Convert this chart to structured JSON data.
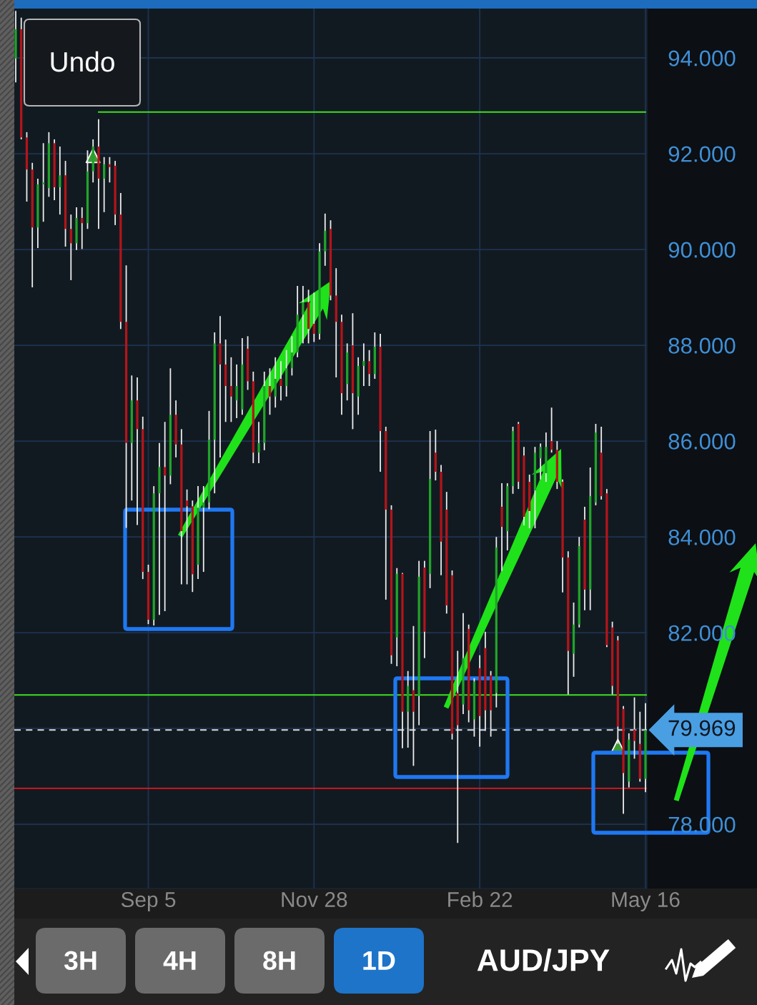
{
  "chart_data": {
    "type": "candlestick",
    "title": "AUD/JPY",
    "categories": [
      null,
      null,
      null,
      null,
      null,
      null,
      null,
      null,
      null,
      null,
      null,
      null,
      null,
      null,
      null,
      null,
      null,
      null,
      null,
      null,
      null,
      null,
      null,
      null,
      "Sep 5",
      null,
      null,
      null,
      null,
      null,
      null,
      null,
      null,
      null,
      null,
      null,
      null,
      null,
      null,
      null,
      null,
      null,
      null,
      null,
      null,
      null,
      null,
      null,
      null,
      null,
      null,
      null,
      null,
      null,
      "Nov 28",
      null,
      null,
      null,
      null,
      null,
      null,
      null,
      null,
      null,
      null,
      null,
      null,
      null,
      null,
      null,
      null,
      null,
      null,
      null,
      null,
      null,
      null,
      null,
      null,
      null,
      null,
      null,
      null,
      null,
      "Feb 22",
      null,
      null,
      null,
      null,
      null,
      null,
      null,
      null,
      null,
      null,
      null,
      null,
      null,
      null,
      null,
      null,
      null,
      null,
      null,
      null,
      null,
      null,
      null,
      null,
      null,
      null,
      null,
      null,
      null,
      "May 16"
    ],
    "ohlc": [
      [
        93.99,
        94.98,
        93.49,
        94.6
      ],
      [
        94.6,
        94.84,
        92.3,
        92.34
      ],
      [
        92.34,
        92.45,
        91.0,
        91.67
      ],
      [
        91.67,
        91.81,
        89.21,
        90.46
      ],
      [
        90.46,
        91.48,
        90.03,
        91.36
      ],
      [
        91.36,
        92.22,
        90.58,
        91.4
      ],
      [
        91.28,
        92.45,
        91.1,
        92.22
      ],
      [
        92.22,
        92.3,
        91.03,
        91.3
      ],
      [
        91.3,
        92.15,
        90.73,
        91.55
      ],
      [
        91.55,
        91.85,
        90.06,
        90.43
      ],
      [
        90.43,
        90.73,
        89.36,
        90.13
      ],
      [
        90.13,
        90.88,
        89.99,
        90.66
      ],
      [
        90.66,
        90.88,
        90.01,
        90.55
      ],
      [
        90.55,
        92.07,
        90.43,
        91.63
      ],
      [
        91.63,
        92.3,
        91.4,
        92.15
      ],
      [
        92.15,
        92.72,
        90.43,
        91.48
      ],
      [
        91.48,
        91.93,
        90.78,
        91.78
      ],
      [
        91.78,
        91.93,
        91.4,
        91.72
      ],
      [
        91.75,
        91.85,
        90.51,
        90.73
      ],
      [
        90.73,
        91.18,
        88.34,
        88.49
      ],
      [
        88.49,
        89.67,
        84.19,
        85.96
      ],
      [
        85.96,
        87.37,
        84.76,
        86.85
      ],
      [
        86.85,
        87.33,
        84.25,
        86.25
      ],
      [
        86.25,
        86.51,
        83.12,
        83.27
      ],
      [
        83.27,
        83.42,
        82.18,
        82.27
      ],
      [
        82.27,
        85.06,
        82.15,
        84.91
      ],
      [
        84.91,
        85.96,
        82.37,
        85.46
      ],
      [
        85.46,
        86.4,
        82.45,
        85.28
      ],
      [
        85.28,
        87.52,
        85.1,
        86.55
      ],
      [
        86.55,
        86.85,
        85.66,
        85.93
      ],
      [
        85.93,
        86.25,
        83.01,
        84.12
      ],
      [
        84.76,
        84.99,
        83.01,
        84.64
      ],
      [
        84.64,
        84.76,
        82.85,
        83.22
      ],
      [
        83.42,
        85.06,
        83.12,
        84.61
      ],
      [
        84.61,
        85.06,
        83.27,
        84.72
      ],
      [
        84.72,
        86.63,
        84.58,
        86.03
      ],
      [
        86.03,
        88.27,
        84.91,
        88.04
      ],
      [
        88.04,
        88.61,
        85.66,
        87.6
      ],
      [
        87.6,
        88.12,
        86.4,
        87.15
      ],
      [
        87.15,
        87.75,
        86.4,
        86.93
      ],
      [
        86.85,
        87.6,
        86.48,
        87.15
      ],
      [
        86.66,
        88.15,
        86.55,
        87.6
      ],
      [
        87.93,
        88.19,
        87.07,
        87.25
      ],
      [
        87.25,
        87.45,
        85.54,
        85.76
      ],
      [
        85.76,
        86.4,
        85.54,
        85.96
      ],
      [
        85.96,
        87.45,
        85.81,
        87.15
      ],
      [
        87.15,
        87.52,
        86.55,
        86.93
      ],
      [
        86.93,
        87.75,
        86.7,
        87.3
      ],
      [
        87.3,
        87.67,
        86.85,
        87.15
      ],
      [
        87.15,
        87.9,
        86.93,
        87.52
      ],
      [
        87.52,
        88.19,
        87.37,
        87.85
      ],
      [
        87.85,
        89.24,
        87.75,
        88.64
      ],
      [
        88.64,
        89.24,
        88.04,
        88.9
      ],
      [
        88.9,
        89.16,
        88.04,
        88.34
      ],
      [
        88.45,
        89.1,
        88.07,
        88.24
      ],
      [
        88.24,
        90.13,
        88.12,
        89.96
      ],
      [
        89.96,
        90.75,
        89.66,
        90.39
      ],
      [
        90.43,
        90.61,
        88.94,
        89.04
      ],
      [
        89.04,
        89.61,
        87.33,
        88.49
      ],
      [
        88.49,
        88.64,
        86.55,
        87.0
      ],
      [
        87.19,
        88.04,
        86.85,
        87.85
      ],
      [
        88.0,
        88.67,
        86.25,
        87.0
      ],
      [
        86.93,
        87.75,
        86.55,
        87.57
      ],
      [
        87.57,
        88.04,
        87.15,
        87.67
      ],
      [
        87.67,
        87.9,
        87.15,
        87.4
      ],
      [
        87.4,
        88.27,
        87.3,
        87.97
      ],
      [
        87.97,
        88.24,
        85.36,
        86.21
      ],
      [
        86.21,
        86.3,
        82.69,
        84.57
      ],
      [
        84.57,
        84.66,
        81.35,
        81.53
      ],
      [
        81.9,
        83.35,
        81.3,
        83.23
      ],
      [
        83.23,
        83.25,
        79.59,
        80.35
      ],
      [
        80.35,
        81.2,
        79.6,
        80.89
      ],
      [
        80.8,
        82.14,
        79.22,
        80.35
      ],
      [
        80.68,
        83.5,
        80.07,
        83.17
      ],
      [
        83.36,
        83.5,
        81.47,
        82.02
      ],
      [
        83.23,
        86.21,
        82.93,
        85.21
      ],
      [
        85.76,
        86.24,
        85.18,
        85.36
      ],
      [
        85.36,
        85.5,
        83.2,
        83.9
      ],
      [
        84.57,
        84.94,
        82.4,
        82.57
      ],
      [
        83.2,
        83.3,
        79.77,
        79.89
      ],
      [
        80.74,
        81.62,
        77.61,
        80.07
      ],
      [
        80.5,
        82.41,
        80.3,
        81.47
      ],
      [
        82.08,
        82.17,
        80.13,
        80.38
      ],
      [
        80.19,
        81.05,
        79.83,
        80.98
      ],
      [
        81.26,
        81.53,
        79.62,
        80.26
      ],
      [
        81.68,
        82.02,
        79.95,
        80.38
      ],
      [
        81.11,
        81.2,
        79.83,
        80.38
      ],
      [
        80.74,
        84.0,
        80.44,
        83.78
      ],
      [
        84.63,
        85.12,
        83.29,
        84.21
      ],
      [
        84.12,
        85.12,
        83.72,
        85.06
      ],
      [
        85.06,
        86.3,
        84.9,
        86.21
      ],
      [
        86.36,
        86.4,
        85.0,
        85.15
      ],
      [
        85.7,
        85.88,
        84.24,
        84.42
      ],
      [
        85.15,
        85.3,
        84.18,
        84.54
      ],
      [
        84.97,
        85.88,
        84.18,
        85.76
      ],
      [
        85.64,
        85.95,
        85.2,
        85.88
      ],
      [
        85.33,
        86.18,
        85.15,
        85.88
      ],
      [
        86.0,
        86.7,
        85.76,
        85.82
      ],
      [
        85.82,
        86.0,
        85.0,
        85.15
      ],
      [
        85.15,
        85.2,
        82.84,
        83.57
      ],
      [
        83.57,
        83.7,
        80.71,
        81.62
      ],
      [
        81.56,
        82.63,
        81.08,
        82.17
      ],
      [
        82.17,
        84.0,
        82.11,
        83.81
      ],
      [
        84.36,
        84.63,
        82.47,
        82.9
      ],
      [
        82.9,
        85.45,
        82.47,
        84.85
      ],
      [
        84.72,
        86.36,
        84.66,
        86.18
      ],
      [
        85.76,
        86.3,
        84.78,
        84.85
      ],
      [
        84.91,
        85.0,
        81.7,
        81.74
      ],
      [
        82.11,
        82.23,
        80.71,
        80.89
      ],
      [
        81.84,
        81.93,
        79.68,
        80.04
      ],
      [
        80.41,
        80.47,
        78.22,
        79.07
      ],
      [
        78.89,
        79.9,
        78.77,
        79.77
      ],
      [
        79.98,
        80.65,
        79.37,
        79.74
      ],
      [
        79.68,
        80.35,
        78.89,
        78.95
      ],
      [
        78.95,
        80.53,
        78.67,
        79.969
      ]
    ],
    "series": [
      {
        "type": "line",
        "color": "#3ee021",
        "values": [
          null,
          null,
          null,
          null,
          null,
          null,
          null,
          null,
          null,
          null,
          null,
          null,
          null,
          null,
          null,
          92.87,
          92.87,
          92.87,
          92.87,
          92.87,
          92.87,
          92.87,
          92.87,
          92.87,
          92.87,
          92.87,
          92.87,
          92.87,
          92.87,
          92.87,
          92.87,
          92.87,
          92.87,
          92.87,
          92.87,
          92.87,
          92.87,
          92.87,
          92.87,
          92.87,
          92.87,
          92.87,
          92.87,
          92.87,
          92.87,
          92.87,
          92.87,
          92.87,
          92.87,
          92.87,
          92.87,
          92.87,
          92.87,
          92.87,
          92.87,
          92.87,
          92.87,
          92.87,
          92.87,
          92.87,
          92.87,
          92.87,
          92.87,
          92.87,
          92.87,
          92.87,
          92.87,
          92.87,
          92.87,
          92.87,
          92.87,
          92.87,
          92.87,
          92.87,
          92.87,
          92.87,
          92.87,
          92.87,
          92.87,
          92.87,
          92.87,
          92.87,
          92.87,
          92.87,
          92.87,
          92.87,
          92.87,
          92.87,
          92.87,
          92.87,
          92.87,
          92.87,
          92.87,
          92.87,
          92.87,
          92.87,
          92.87,
          92.87,
          92.87,
          92.87,
          92.87,
          92.87,
          92.87,
          92.87,
          92.87,
          92.87,
          92.87,
          92.87,
          92.87,
          92.87,
          92.87,
          92.87,
          92.87,
          92.87,
          92.87
        ]
      },
      {
        "type": "scatter",
        "color": "#3f9a35",
        "marker": "triangle",
        "values": [
          null,
          null,
          null,
          null,
          null,
          null,
          null,
          null,
          null,
          null,
          null,
          null,
          null,
          null,
          91.96,
          null,
          null,
          null,
          null,
          null,
          null,
          null,
          null,
          null,
          null,
          null,
          null,
          null,
          null,
          null,
          null,
          null,
          null,
          null,
          null,
          null,
          null,
          null,
          null,
          null,
          null,
          null,
          null,
          null,
          null,
          null,
          null,
          null,
          null,
          null,
          null,
          null,
          null,
          null,
          null,
          null,
          null,
          null,
          null,
          null,
          null,
          null,
          null,
          null,
          null,
          null,
          null,
          null,
          null,
          null,
          null,
          null,
          null,
          null,
          null,
          null,
          null,
          null,
          null,
          null,
          null,
          null,
          null,
          null,
          null,
          null,
          null,
          null,
          null,
          null,
          null,
          null,
          null,
          null,
          null,
          null,
          null,
          null,
          null,
          null,
          null,
          null,
          null,
          null,
          null,
          null,
          null,
          null,
          null,
          79.63,
          null,
          null,
          null,
          null,
          null
        ]
      }
    ],
    "ylim": [
      76.66,
      95.03
    ],
    "yticks": [
      {
        "value": 78,
        "label": "78.000"
      },
      {
        "value": 80,
        "label": null
      },
      {
        "value": 82,
        "label": "82.000"
      },
      {
        "value": 84,
        "label": "84.000"
      },
      {
        "value": 86,
        "label": "86.000"
      },
      {
        "value": 88,
        "label": "88.000"
      },
      {
        "value": 90,
        "label": "90.000"
      },
      {
        "value": 92,
        "label": "92.000"
      },
      {
        "value": 94,
        "label": "94.000"
      }
    ],
    "ref_lines": [
      {
        "axis": "y",
        "value": 80.7,
        "color": "#3ee021"
      },
      {
        "axis": "y",
        "value": 78.75,
        "color": "#e0161b"
      },
      {
        "axis": "y",
        "value": 79.969,
        "label": "79.969",
        "color": "#d9d9d9",
        "line_style": "dashed"
      }
    ],
    "grid": true,
    "annotations": [
      "Undo",
      "3H",
      "4H",
      "8H",
      "1D"
    ]
  }
}
